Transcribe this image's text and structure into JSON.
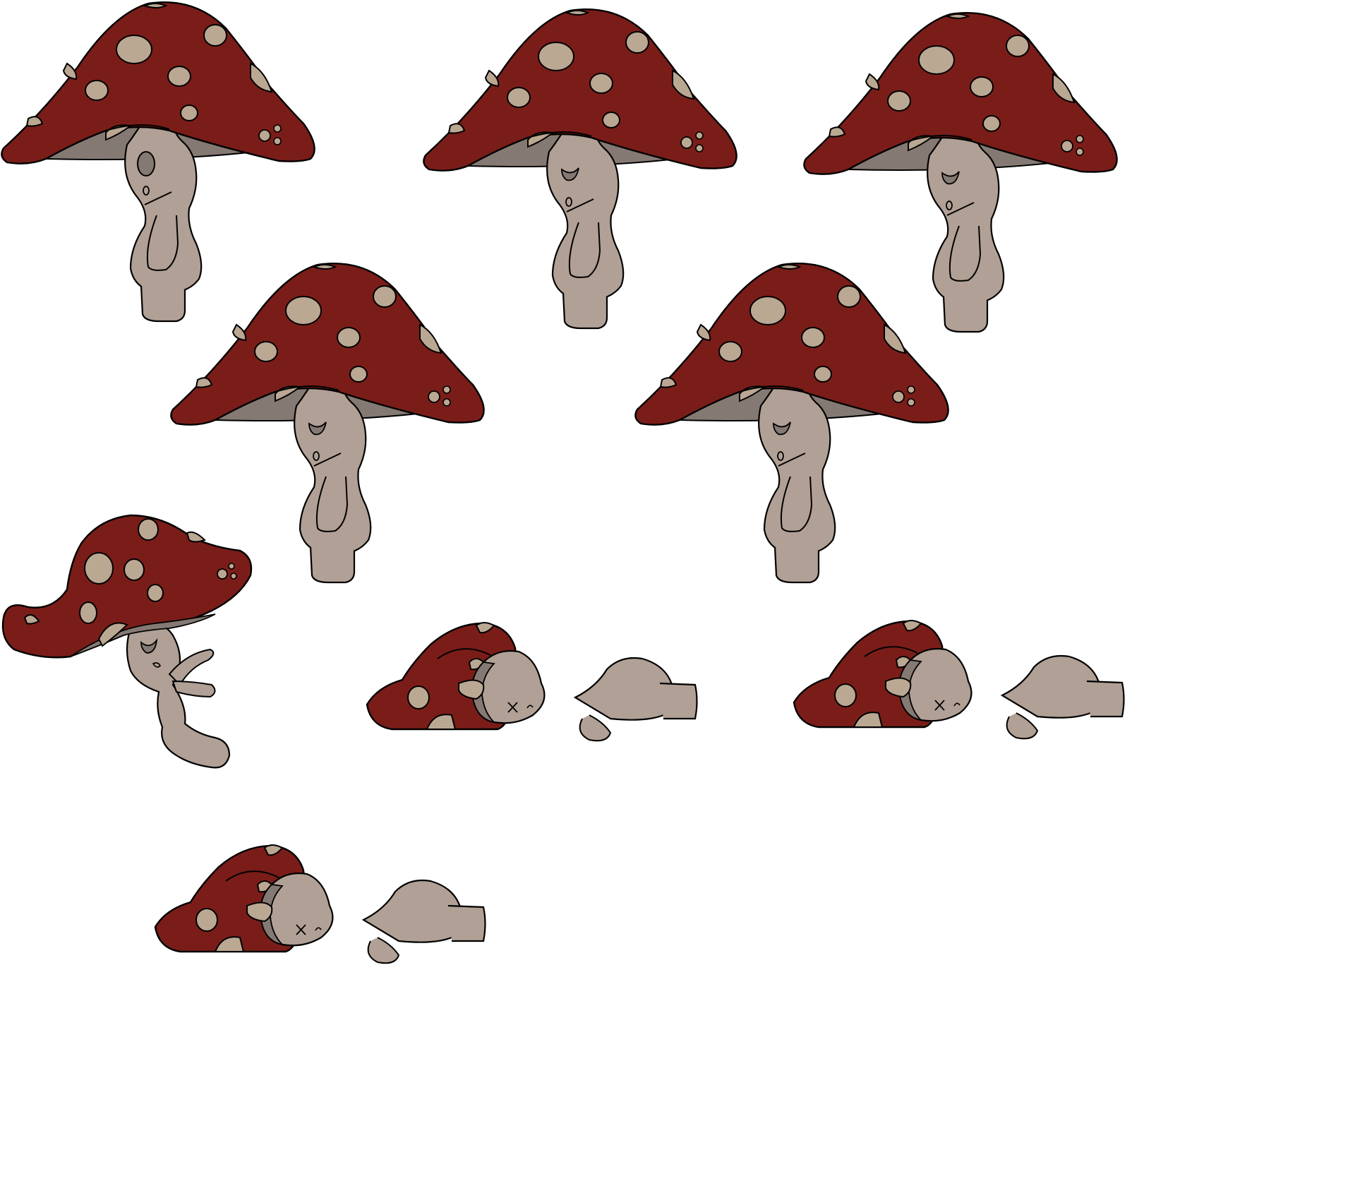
{
  "sprite_sheet": {
    "colors": {
      "cap": "#7a1d19",
      "spot": "#bba893",
      "gill": "#857a73",
      "stem": "#b1a095",
      "stem_dark": "#8d817a",
      "outline": "#000000",
      "background": "#ffffff"
    },
    "frames": [
      {
        "name": "stand-frame-1",
        "pose": "stand",
        "expression": "mouth-open"
      },
      {
        "name": "stand-frame-2",
        "pose": "stand",
        "expression": "eyes-closed"
      },
      {
        "name": "stand-frame-3",
        "pose": "stand",
        "expression": "eyes-closed"
      },
      {
        "name": "stand-frame-4",
        "pose": "stand",
        "expression": "eyes-closed"
      },
      {
        "name": "stand-frame-5",
        "pose": "stand",
        "expression": "eyes-closed"
      },
      {
        "name": "fall-frame-1",
        "pose": "falling",
        "expression": "eyes-closed"
      },
      {
        "name": "knocked-out-frame-1",
        "pose": "lying",
        "expression": "x-eyes"
      },
      {
        "name": "knocked-out-frame-2",
        "pose": "lying",
        "expression": "x-eyes"
      },
      {
        "name": "knocked-out-frame-3",
        "pose": "lying",
        "expression": "x-eyes"
      }
    ]
  }
}
